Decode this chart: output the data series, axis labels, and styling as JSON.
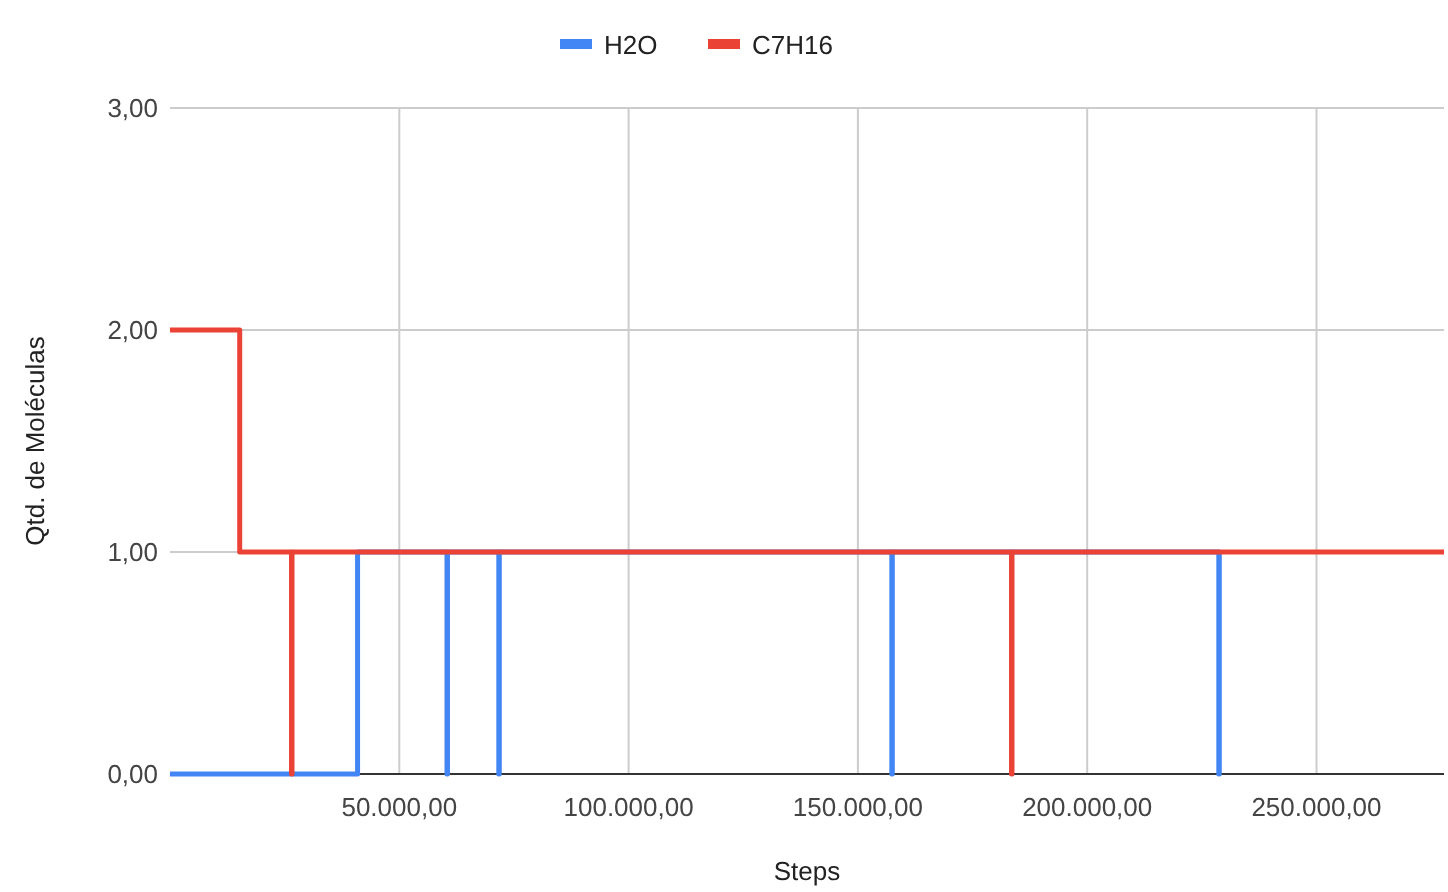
{
  "chart_data": {
    "type": "step",
    "xlabel": "Steps",
    "ylabel": "Qtd. de Moléculas",
    "xlim": [
      0,
      277800
    ],
    "xticks": [
      {
        "value": 50000,
        "label": "50.000,00"
      },
      {
        "value": 100000,
        "label": "100.000,00"
      },
      {
        "value": 150000,
        "label": "150.000,00"
      },
      {
        "value": 200000,
        "label": "200.000,00"
      },
      {
        "value": 250000,
        "label": "250.000,00"
      }
    ],
    "ylim": [
      0,
      3
    ],
    "yticks": [
      {
        "value": 0,
        "label": "0,00"
      },
      {
        "value": 1,
        "label": "1,00"
      },
      {
        "value": 2,
        "label": "2,00"
      },
      {
        "value": 3,
        "label": "3,00"
      }
    ],
    "grid": true,
    "legend": "top",
    "series": [
      {
        "name": "H2O",
        "color": "#4285f4",
        "x": [
          0,
          40900,
          60400,
          60500,
          71700,
          71800,
          157400,
          157500,
          228700,
          228800
        ],
        "values": [
          0,
          1,
          0,
          1,
          0,
          1,
          0,
          1,
          0,
          1
        ]
      },
      {
        "name": "C7H16",
        "color": "#ea4335",
        "x": [
          0,
          15200,
          26500,
          26600,
          183500,
          183600,
          277800
        ],
        "values": [
          2,
          1,
          0,
          1,
          0,
          1,
          1
        ]
      }
    ]
  }
}
